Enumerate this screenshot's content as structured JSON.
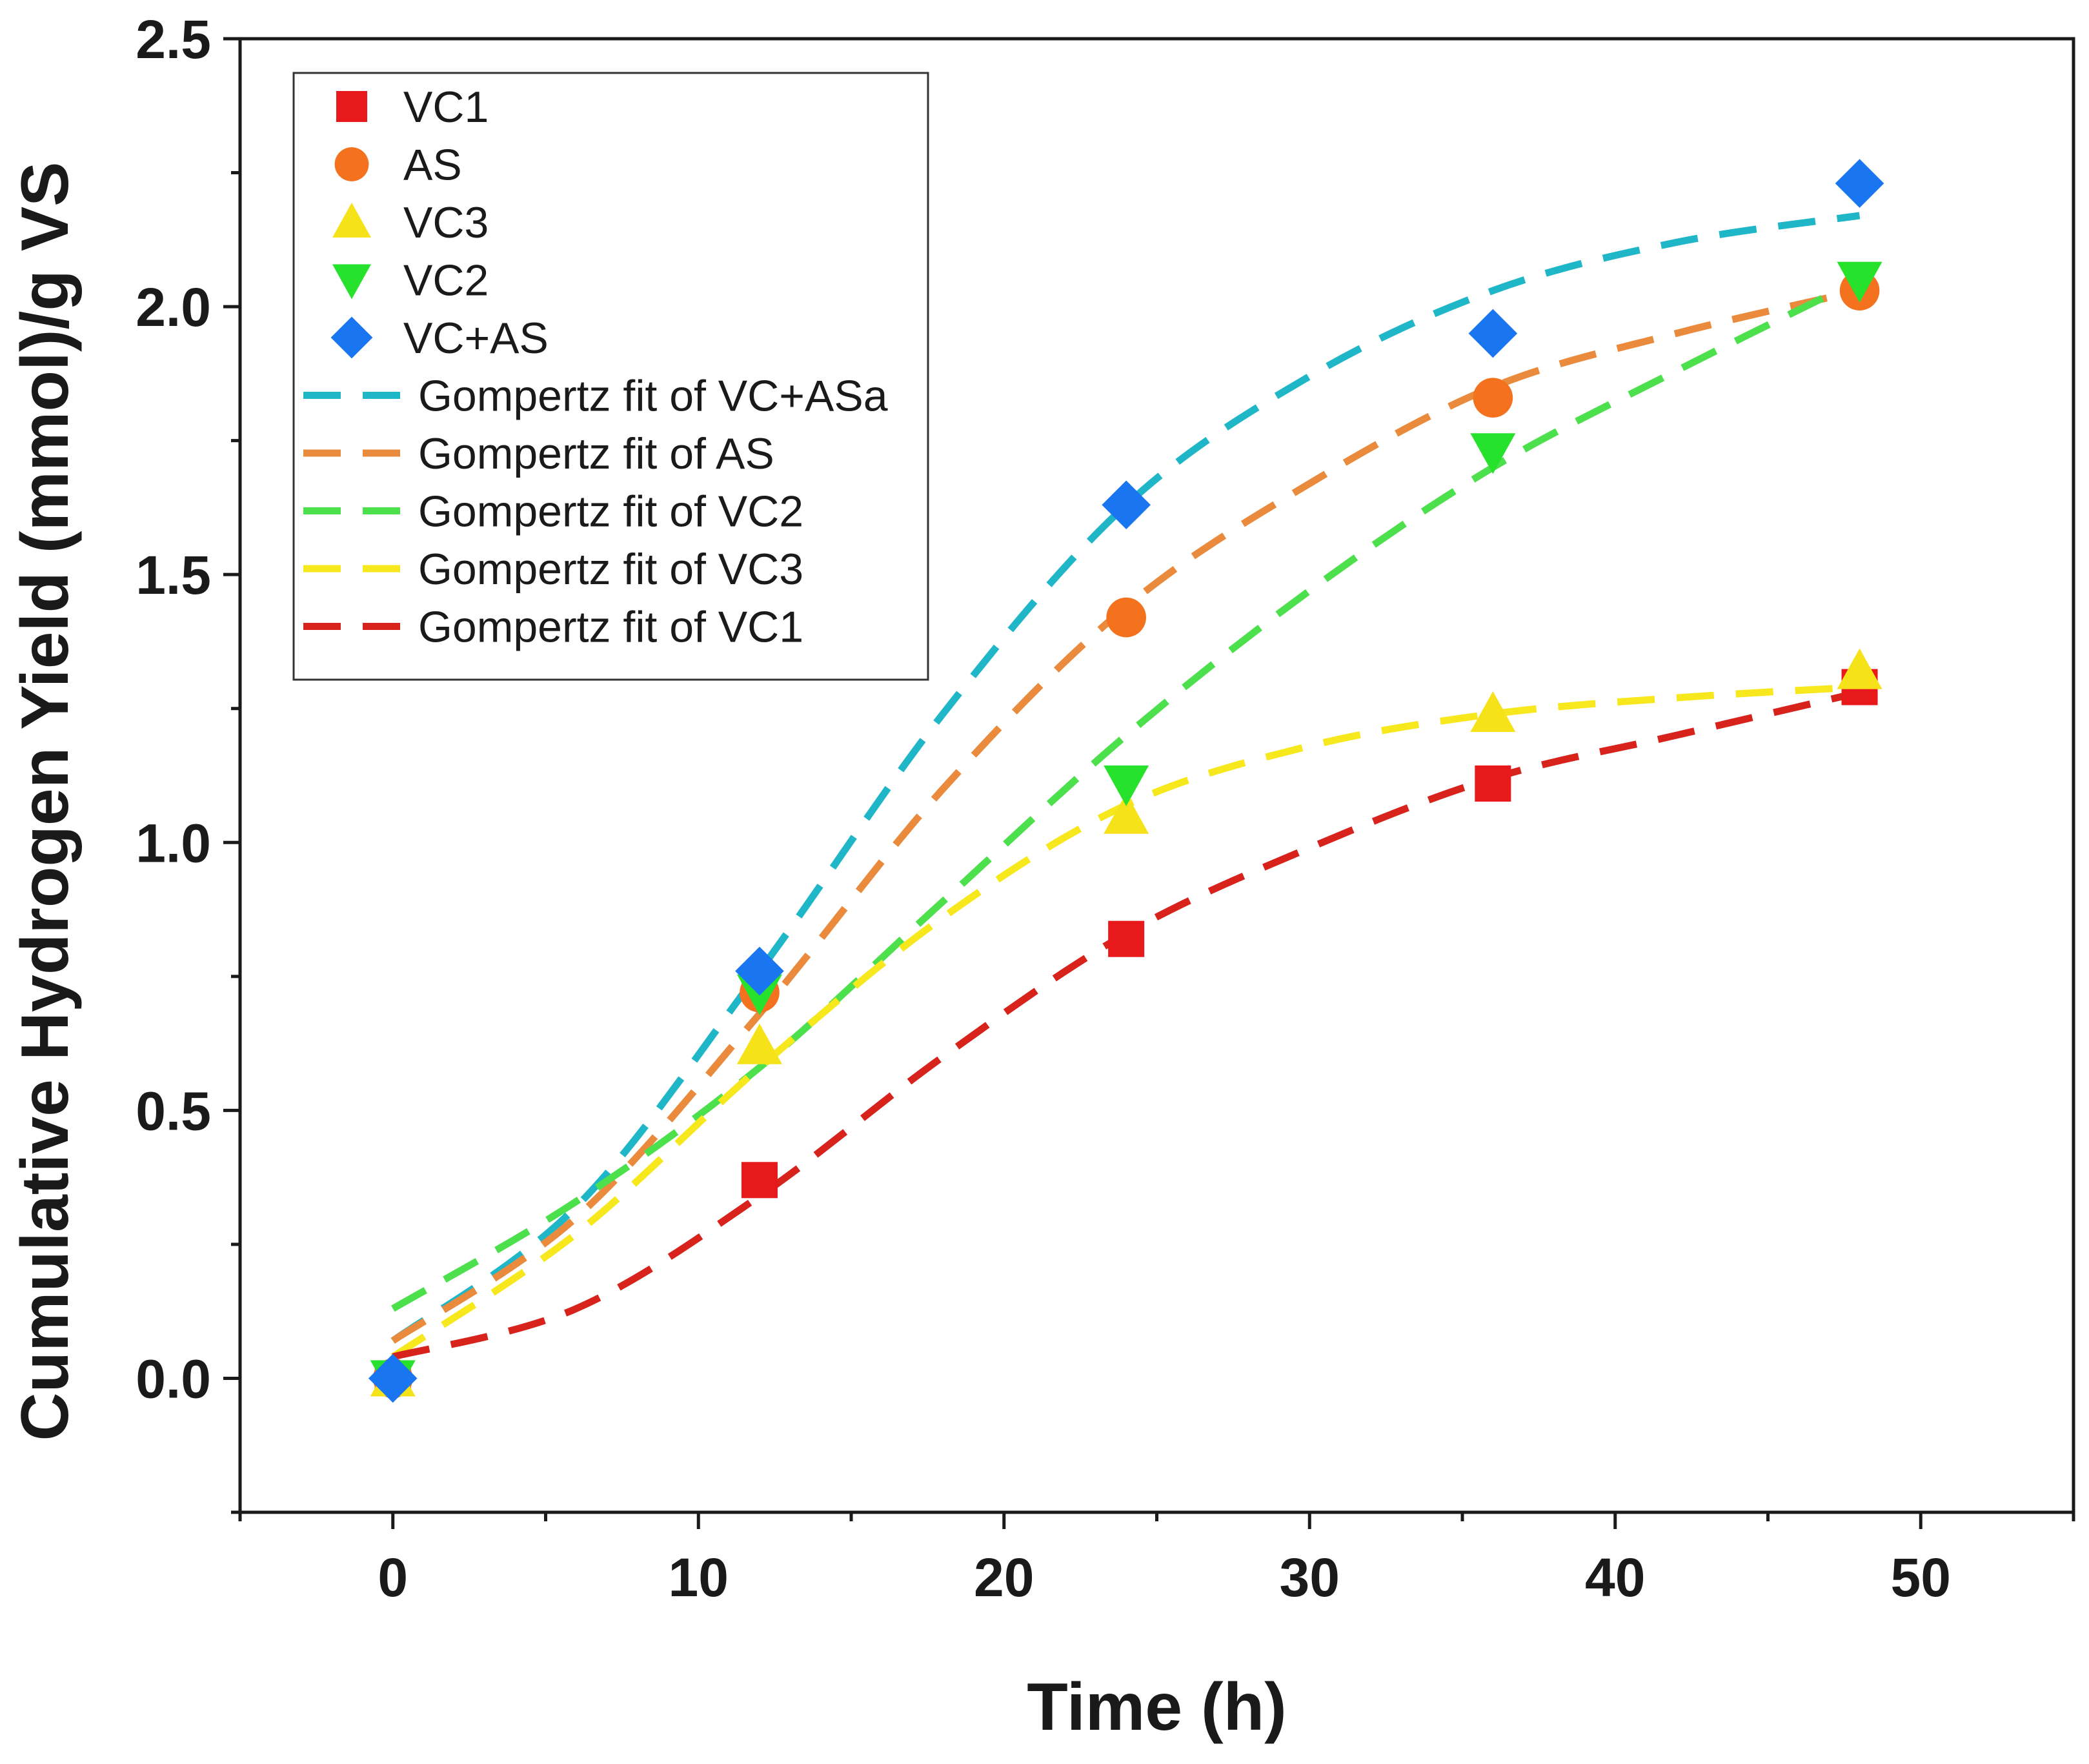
{
  "chart_data": {
    "type": "scatter",
    "title": "",
    "xlabel": "Time (h)",
    "ylabel": "Cumulative Hydrogen Yield (mmol)/g VS",
    "xlim": [
      -5,
      55
    ],
    "ylim": [
      -0.25,
      2.5
    ],
    "xticks": [
      0,
      10,
      20,
      30,
      40,
      50
    ],
    "yticks": [
      0.0,
      0.5,
      1.0,
      1.5,
      2.0,
      2.5
    ],
    "xtick_labels": [
      "0",
      "10",
      "20",
      "30",
      "40",
      "50"
    ],
    "ytick_labels": [
      "0.0",
      "0.5",
      "1.0",
      "1.5",
      "2.0",
      "2.5"
    ],
    "grid": false,
    "legend_position": "top-left",
    "x": [
      0,
      12,
      24,
      36,
      48
    ],
    "series": [
      {
        "name": "VC1",
        "marker": "square",
        "color": "#e8191b",
        "values": [
          0.0,
          0.37,
          0.82,
          1.11,
          1.29
        ]
      },
      {
        "name": "AS",
        "marker": "circle",
        "color": "#f4711e",
        "values": [
          0.0,
          0.72,
          1.42,
          1.83,
          2.03
        ]
      },
      {
        "name": "VC3",
        "marker": "triangle-up",
        "color": "#f6e219",
        "values": [
          0.0,
          0.62,
          1.05,
          1.24,
          1.32
        ]
      },
      {
        "name": "VC2",
        "marker": "triangle-down",
        "color": "#26e22c",
        "values": [
          0.0,
          0.72,
          1.11,
          1.73,
          2.05
        ]
      },
      {
        "name": "VC+AS",
        "marker": "diamond",
        "color": "#1976f0",
        "values": [
          0.0,
          0.76,
          1.63,
          1.95,
          2.23
        ]
      }
    ],
    "fits": [
      {
        "name": "Gompertz fit of VC+ASa",
        "color": "#1fb7c8",
        "x": [
          0,
          6,
          12,
          18,
          24,
          30,
          36,
          42,
          48
        ],
        "values": [
          0.07,
          0.32,
          0.76,
          1.24,
          1.63,
          1.87,
          2.03,
          2.12,
          2.17
        ]
      },
      {
        "name": "Gompertz fit of AS",
        "color": "#ea8a3c",
        "x": [
          0,
          6,
          12,
          18,
          24,
          30,
          36,
          42,
          48
        ],
        "values": [
          0.07,
          0.3,
          0.68,
          1.1,
          1.44,
          1.67,
          1.85,
          1.95,
          2.03
        ]
      },
      {
        "name": "Gompertz fit of VC2",
        "color": "#4de04d",
        "x": [
          0,
          6,
          12,
          18,
          24,
          30,
          36,
          42,
          48
        ],
        "values": [
          0.13,
          0.33,
          0.58,
          0.89,
          1.2,
          1.47,
          1.7,
          1.88,
          2.05
        ]
      },
      {
        "name": "Gompertz fit of VC3",
        "color": "#f6e81c",
        "x": [
          0,
          6,
          12,
          18,
          24,
          30,
          36,
          42,
          48
        ],
        "values": [
          0.04,
          0.27,
          0.58,
          0.86,
          1.07,
          1.18,
          1.24,
          1.27,
          1.29
        ]
      },
      {
        "name": "Gompertz fit of VC1",
        "color": "#d8221c",
        "x": [
          0,
          6,
          12,
          18,
          24,
          30,
          36,
          42,
          48
        ],
        "values": [
          0.04,
          0.13,
          0.34,
          0.6,
          0.83,
          0.99,
          1.12,
          1.2,
          1.28
        ]
      }
    ]
  }
}
